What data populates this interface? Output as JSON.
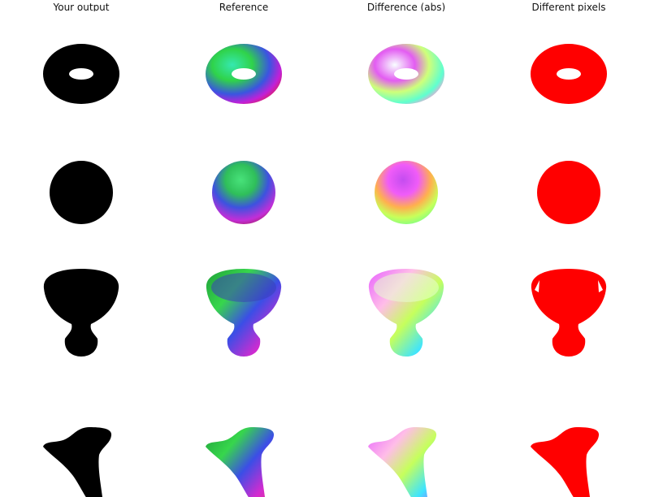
{
  "columns": [
    {
      "title": "Your output"
    },
    {
      "title": "Reference"
    },
    {
      "title": "Difference (abs)"
    },
    {
      "title": "Different pixels"
    }
  ],
  "rows": [
    {
      "shape": "torus"
    },
    {
      "shape": "sphere"
    },
    {
      "shape": "goblet"
    },
    {
      "shape": "bent-cone"
    }
  ],
  "colors": {
    "output_fill": "#000000",
    "different_fill": "#ff0000",
    "background": "#ffffff"
  }
}
